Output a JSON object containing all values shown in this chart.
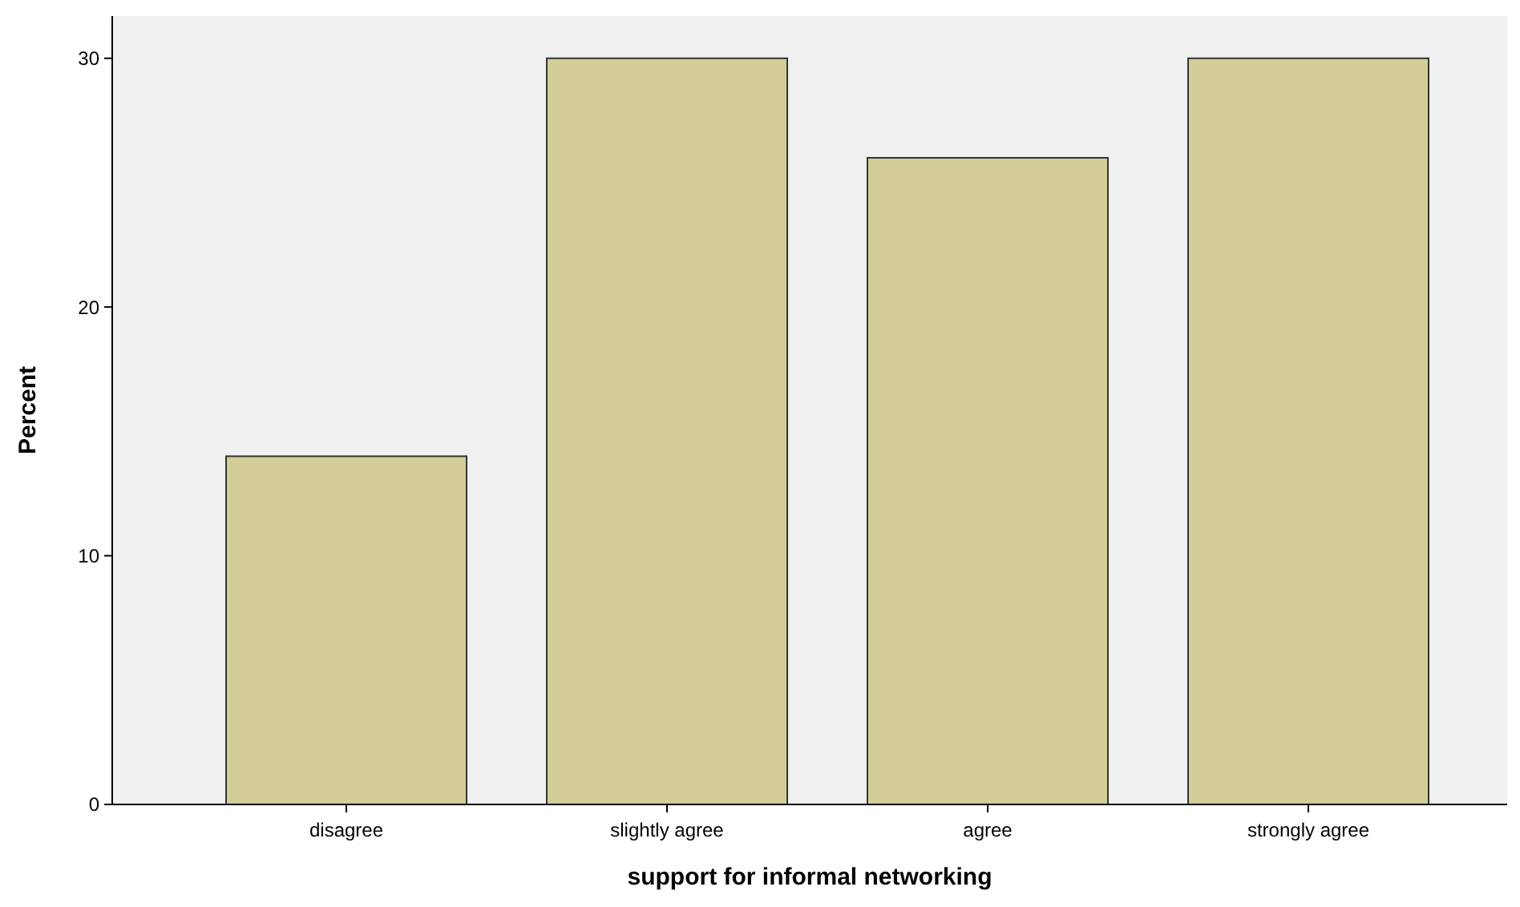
{
  "chart_data": {
    "type": "bar",
    "xlabel": "support for informal networking",
    "ylabel": "Percent",
    "categories": [
      "disagree",
      "slightly agree",
      "agree",
      "strongly agree"
    ],
    "values": [
      14,
      30,
      26,
      30
    ],
    "color": "#d3ce97",
    "ylim": [
      0,
      31.7
    ],
    "yticks": [
      0,
      10,
      20,
      30
    ],
    "grid": false
  }
}
